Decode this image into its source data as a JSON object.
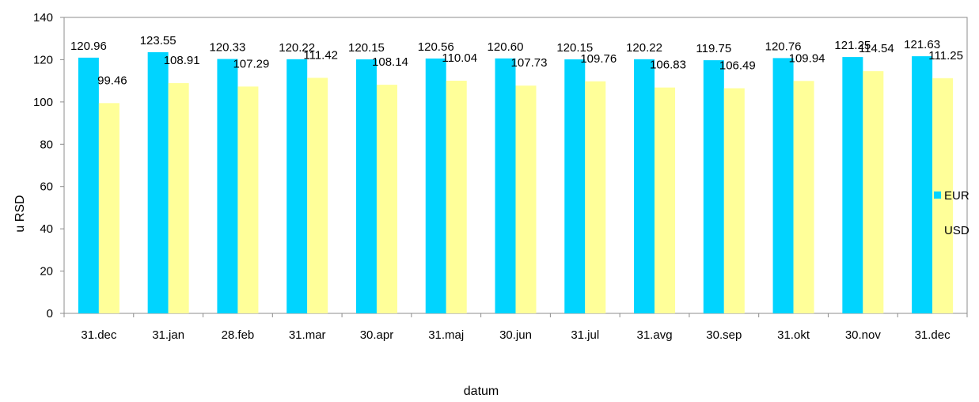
{
  "chart_data": {
    "type": "bar",
    "categories": [
      "31.dec",
      "31.jan",
      "28.feb",
      "31.mar",
      "30.apr",
      "31.maj",
      "30.jun",
      "31.jul",
      "31.avg",
      "30.sep",
      "31.okt",
      "30.nov",
      "31.dec"
    ],
    "series": [
      {
        "name": "EUR",
        "color": "#00D4FF",
        "values": [
          120.96,
          123.55,
          120.33,
          120.22,
          120.15,
          120.56,
          120.6,
          120.15,
          120.22,
          119.75,
          120.76,
          121.25,
          121.63
        ]
      },
      {
        "name": "USD",
        "color": "#FFFF99",
        "values": [
          99.46,
          108.91,
          107.29,
          111.42,
          108.14,
          110.04,
          107.73,
          109.76,
          106.83,
          106.49,
          109.94,
          114.54,
          111.25
        ]
      }
    ],
    "data_labels": [
      [
        "120.96",
        "123.55",
        "120.33",
        "120.22",
        "120.15",
        "120.56",
        "120.60",
        "120.15",
        "120.22",
        "119.75",
        "120.76",
        "121.25",
        "121.63"
      ],
      [
        "99.46",
        "108.91",
        "107.29",
        "111.42",
        "108.14",
        "110.04",
        "107.73",
        "109.76",
        "106.83",
        "106.49",
        "109.94",
        "114.54",
        "111.25"
      ]
    ],
    "xlabel": "datum",
    "ylabel": "u RSD",
    "ylim": [
      0,
      140
    ],
    "yticks": [
      0,
      20,
      40,
      60,
      80,
      100,
      120,
      140
    ],
    "legend_position": "right",
    "grid": false
  }
}
